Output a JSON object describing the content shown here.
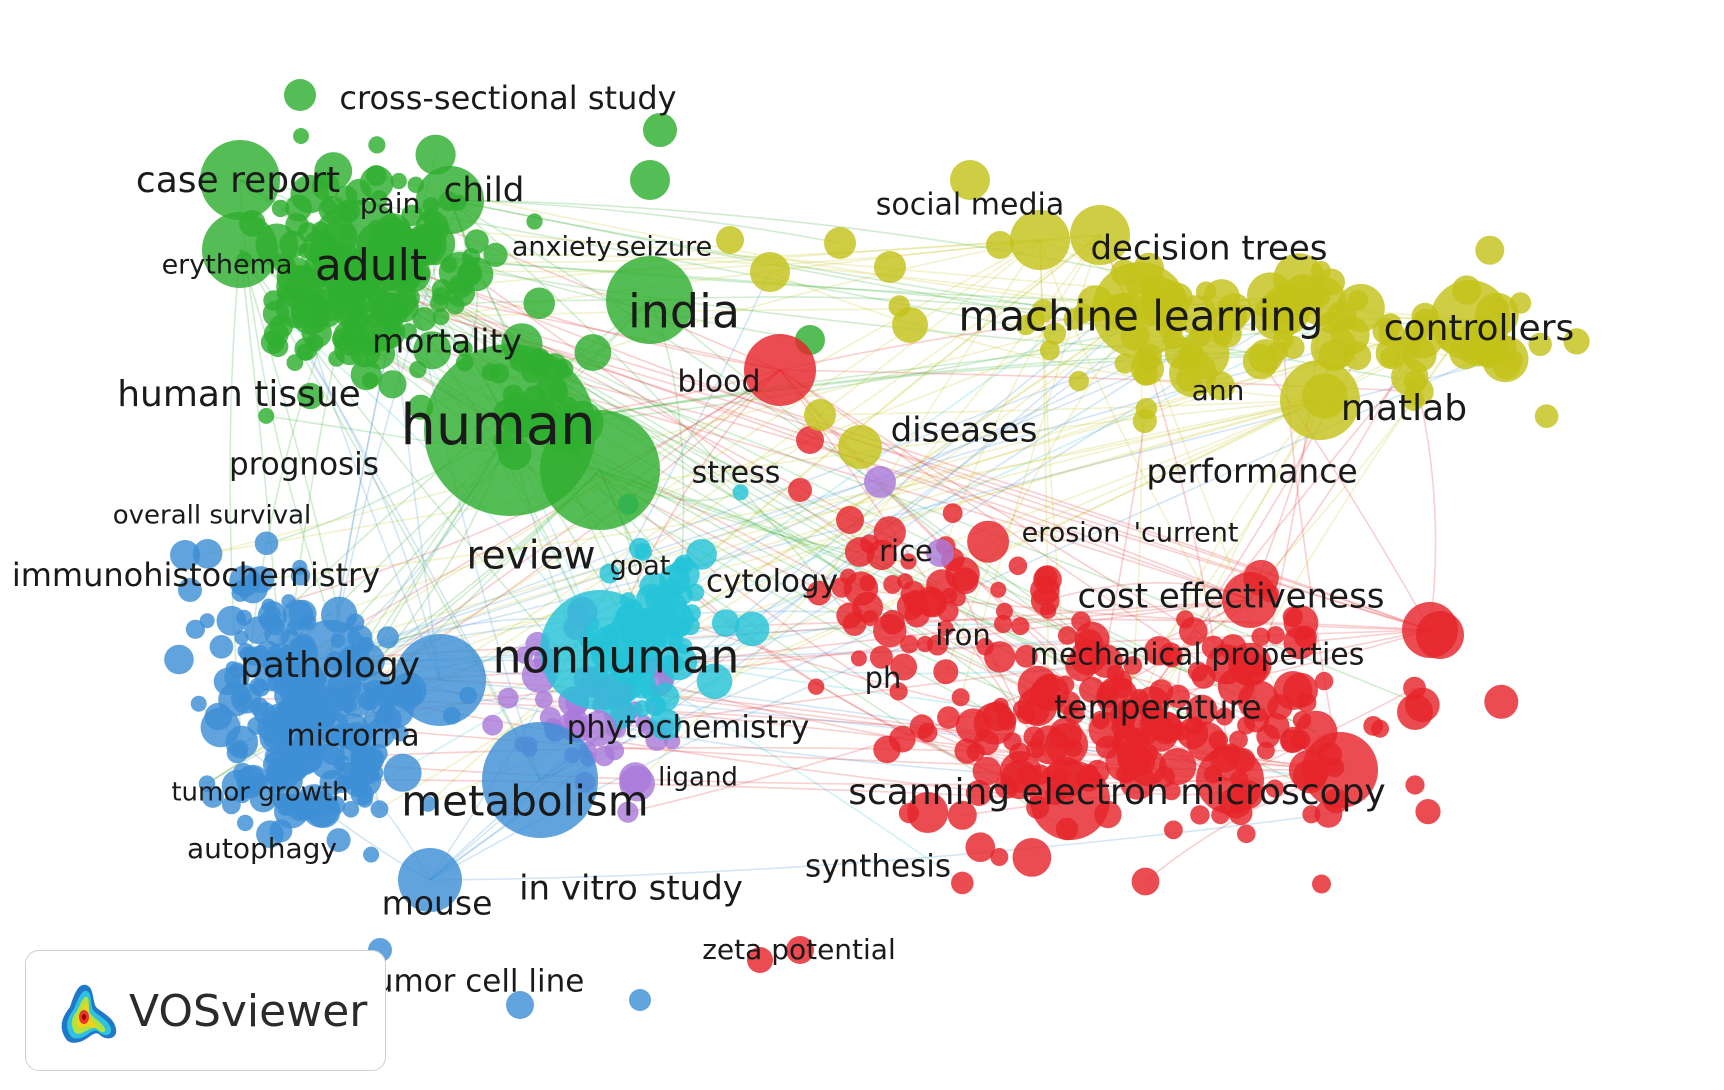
{
  "app": {
    "name": "VOSviewer"
  },
  "clusters": [
    {
      "id": "green",
      "color": "#2fae2f"
    },
    {
      "id": "blue",
      "color": "#3d8fd6"
    },
    {
      "id": "cyan",
      "color": "#25c3d8"
    },
    {
      "id": "purple",
      "color": "#a97ad9"
    },
    {
      "id": "yellow",
      "color": "#c3c21a"
    },
    {
      "id": "red",
      "color": "#e5252b"
    }
  ],
  "keywords": [
    {
      "text": "cross-sectional study",
      "cluster": "green"
    },
    {
      "text": "case report",
      "cluster": "green"
    },
    {
      "text": "pain",
      "cluster": "green"
    },
    {
      "text": "child",
      "cluster": "green"
    },
    {
      "text": "erythema",
      "cluster": "green"
    },
    {
      "text": "adult",
      "cluster": "green"
    },
    {
      "text": "anxiety",
      "cluster": "green"
    },
    {
      "text": "seizure",
      "cluster": "green"
    },
    {
      "text": "india",
      "cluster": "green"
    },
    {
      "text": "mortality",
      "cluster": "green"
    },
    {
      "text": "human tissue",
      "cluster": "green"
    },
    {
      "text": "blood",
      "cluster": "green"
    },
    {
      "text": "human",
      "cluster": "green"
    },
    {
      "text": "prognosis",
      "cluster": "green"
    },
    {
      "text": "stress",
      "cluster": "green"
    },
    {
      "text": "overall survival",
      "cluster": "blue"
    },
    {
      "text": "review",
      "cluster": "green"
    },
    {
      "text": "goat",
      "cluster": "purple"
    },
    {
      "text": "immunohistochemistry",
      "cluster": "blue"
    },
    {
      "text": "cytology",
      "cluster": "cyan"
    },
    {
      "text": "nonhuman",
      "cluster": "cyan"
    },
    {
      "text": "pathology",
      "cluster": "blue"
    },
    {
      "text": "microrna",
      "cluster": "blue"
    },
    {
      "text": "phytochemistry",
      "cluster": "cyan"
    },
    {
      "text": "ligand",
      "cluster": "purple"
    },
    {
      "text": "tumor growth",
      "cluster": "blue"
    },
    {
      "text": "metabolism",
      "cluster": "blue"
    },
    {
      "text": "autophagy",
      "cluster": "blue"
    },
    {
      "text": "mouse",
      "cluster": "blue"
    },
    {
      "text": "in vitro study",
      "cluster": "purple"
    },
    {
      "text": "zeta potential",
      "cluster": "red"
    },
    {
      "text": "tumor cell line",
      "cluster": "blue"
    },
    {
      "text": "social media",
      "cluster": "yellow"
    },
    {
      "text": "decision trees",
      "cluster": "yellow"
    },
    {
      "text": "machine learning",
      "cluster": "yellow"
    },
    {
      "text": "controllers",
      "cluster": "yellow"
    },
    {
      "text": "ann",
      "cluster": "yellow"
    },
    {
      "text": "matlab",
      "cluster": "yellow"
    },
    {
      "text": "diseases",
      "cluster": "yellow"
    },
    {
      "text": "performance",
      "cluster": "yellow"
    },
    {
      "text": "erosion",
      "cluster": "red"
    },
    {
      "text": "'current",
      "cluster": "red"
    },
    {
      "text": "rice",
      "cluster": "red"
    },
    {
      "text": "cost effectiveness",
      "cluster": "red"
    },
    {
      "text": "iron",
      "cluster": "red"
    },
    {
      "text": "mechanical properties",
      "cluster": "red"
    },
    {
      "text": "ph",
      "cluster": "red"
    },
    {
      "text": "temperature",
      "cluster": "red"
    },
    {
      "text": "scanning electron microscopy",
      "cluster": "red"
    },
    {
      "text": "synthesis",
      "cluster": "red"
    }
  ]
}
